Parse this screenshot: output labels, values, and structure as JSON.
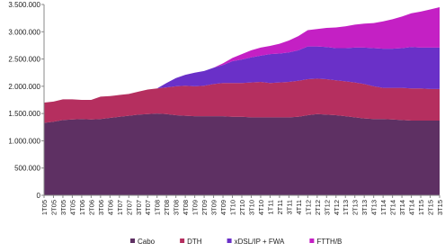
{
  "chart_data": {
    "type": "stacked_area",
    "categories": [
      "1T05",
      "2T05",
      "3T05",
      "4T05",
      "1T06",
      "2T06",
      "3T06",
      "4T06",
      "1T07",
      "2T07",
      "3T07",
      "4T07",
      "1T08",
      "2T08",
      "3T08",
      "4T08",
      "1T09",
      "2T09",
      "3T09",
      "4T09",
      "1T10",
      "2T10",
      "3T10",
      "4T10",
      "1T11",
      "2T11",
      "3T11",
      "4T11",
      "1T12",
      "2T12",
      "3T12",
      "4T12",
      "1T13",
      "2T13",
      "3T13",
      "4T13",
      "1T14",
      "2T14",
      "3T14",
      "4T14",
      "1T15",
      "2T15",
      "3T15"
    ],
    "series": [
      {
        "name": "Cabo",
        "color": "#5e3063",
        "values": [
          1330000,
          1350000,
          1380000,
          1390000,
          1400000,
          1390000,
          1400000,
          1420000,
          1440000,
          1460000,
          1480000,
          1490000,
          1500000,
          1490000,
          1470000,
          1460000,
          1450000,
          1450000,
          1450000,
          1450000,
          1440000,
          1440000,
          1430000,
          1430000,
          1430000,
          1430000,
          1430000,
          1440000,
          1470000,
          1490000,
          1480000,
          1470000,
          1450000,
          1430000,
          1410000,
          1400000,
          1400000,
          1390000,
          1380000,
          1370000,
          1370000,
          1370000,
          1370000
        ]
      },
      {
        "name": "DTH",
        "color": "#b52f5f",
        "values": [
          370000,
          370000,
          380000,
          370000,
          350000,
          360000,
          410000,
          400000,
          400000,
          400000,
          420000,
          450000,
          460000,
          490000,
          530000,
          550000,
          550000,
          560000,
          590000,
          610000,
          620000,
          620000,
          640000,
          650000,
          630000,
          640000,
          650000,
          660000,
          660000,
          650000,
          650000,
          640000,
          640000,
          640000,
          630000,
          600000,
          570000,
          580000,
          590000,
          590000,
          590000,
          580000,
          580000
        ]
      },
      {
        "name": "xDSL/IP + FWA",
        "color": "#6a30c8",
        "values": [
          0,
          0,
          0,
          0,
          0,
          0,
          0,
          0,
          0,
          0,
          0,
          0,
          0,
          80000,
          150000,
          200000,
          250000,
          270000,
          300000,
          330000,
          400000,
          430000,
          460000,
          480000,
          530000,
          530000,
          540000,
          560000,
          600000,
          590000,
          590000,
          590000,
          610000,
          640000,
          670000,
          700000,
          720000,
          720000,
          730000,
          760000,
          750000,
          760000,
          760000
        ]
      },
      {
        "name": "FTTH/B",
        "color": "#c420c4",
        "values": [
          0,
          0,
          0,
          0,
          0,
          0,
          0,
          0,
          0,
          0,
          0,
          0,
          0,
          0,
          0,
          0,
          0,
          0,
          0,
          30000,
          60000,
          100000,
          130000,
          150000,
          150000,
          180000,
          220000,
          260000,
          300000,
          320000,
          350000,
          380000,
          400000,
          420000,
          440000,
          460000,
          500000,
          540000,
          580000,
          620000,
          660000,
          700000,
          740000
        ]
      }
    ],
    "ylim": [
      0,
      3500000
    ],
    "yticks": [
      0,
      {
        "value": 500000,
        "label": "500.000"
      },
      {
        "value": 1000000,
        "label": "1.000.000"
      },
      {
        "value": 1500000,
        "label": "1.500.000"
      },
      {
        "value": 2000000,
        "label": "2.000.000"
      },
      {
        "value": 2500000,
        "label": "2.500.000"
      },
      {
        "value": 3000000,
        "label": "3.000.000"
      },
      {
        "value": 3500000,
        "label": "3.500.000"
      }
    ],
    "legend": "bottom"
  }
}
